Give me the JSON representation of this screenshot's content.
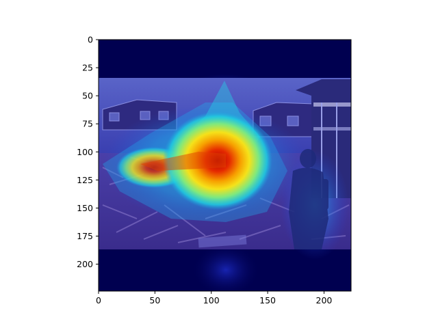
{
  "figure": {
    "kind": "heatmap overlay on photograph (attention / saliency map)",
    "photo_subject": "disaster debris, damaged houses, person standing at right",
    "colormap": "jet",
    "colors": {
      "padding": "#000050",
      "low": "#1a1ad0",
      "mid": "#1fd0e0",
      "high_yellow": "#f5e21a",
      "peak": "#d00000",
      "axis": "#000000",
      "background": "#ffffff"
    }
  },
  "chart_data": {
    "type": "heatmap",
    "title": "",
    "xlabel": "",
    "ylabel": "",
    "xlim": [
      0,
      224
    ],
    "ylim": [
      224,
      0
    ],
    "xticks": [
      "0",
      "50",
      "100",
      "150",
      "200"
    ],
    "yticks": [
      "0",
      "25",
      "50",
      "75",
      "100",
      "125",
      "150",
      "175",
      "200"
    ],
    "xtick_values": [
      0,
      50,
      100,
      150,
      200
    ],
    "ytick_values": [
      0,
      25,
      50,
      75,
      100,
      125,
      150,
      175,
      200
    ],
    "image_band": [
      34,
      186
    ],
    "hotspot": {
      "x": 110,
      "y": 108
    },
    "secondary_hotspot": {
      "x": 40,
      "y": 112
    },
    "person_highlight": {
      "x": 188,
      "y": 140
    }
  }
}
